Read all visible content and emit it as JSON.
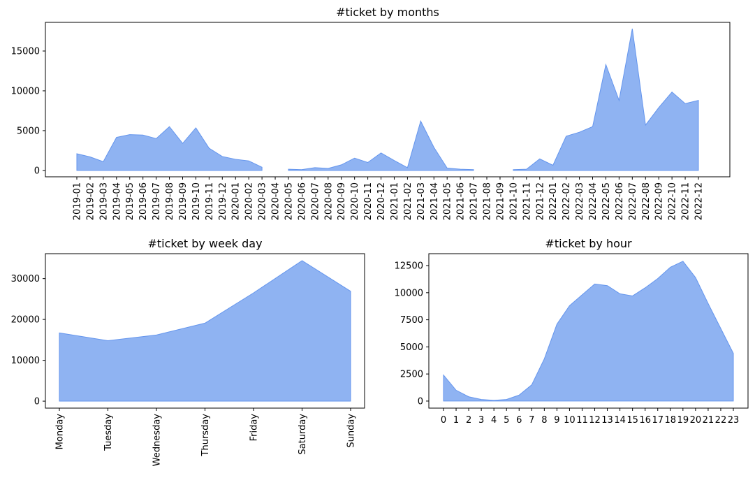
{
  "colors": {
    "area_fill": "#6495ED",
    "axis": "#000000",
    "background": "#ffffff"
  },
  "chart_data": [
    {
      "id": "months",
      "type": "area",
      "title": "#ticket by months",
      "xlabel": "",
      "ylabel": "",
      "ylim": [
        -800,
        18600
      ],
      "yticks": [
        0,
        5000,
        10000,
        15000
      ],
      "categories": [
        "2019-01",
        "2019-02",
        "2019-03",
        "2019-04",
        "2019-05",
        "2019-06",
        "2019-07",
        "2019-08",
        "2019-09",
        "2019-10",
        "2019-11",
        "2019-12",
        "2020-01",
        "2020-02",
        "2020-03",
        "2020-04",
        "2020-05",
        "2020-06",
        "2020-07",
        "2020-08",
        "2020-09",
        "2020-10",
        "2020-11",
        "2020-12",
        "2021-01",
        "2021-02",
        "2021-03",
        "2021-04",
        "2021-05",
        "2021-06",
        "2021-07",
        "2021-08",
        "2021-09",
        "2021-10",
        "2021-11",
        "2021-12",
        "2022-01",
        "2022-02",
        "2022-03",
        "2022-04",
        "2022-05",
        "2022-06",
        "2022-07",
        "2022-08",
        "2022-09",
        "2022-10",
        "2022-11",
        "2022-12"
      ],
      "values": [
        2100,
        1700,
        1100,
        4150,
        4500,
        4450,
        4000,
        5500,
        3400,
        5350,
        2800,
        1750,
        1400,
        1200,
        400,
        null,
        150,
        100,
        350,
        250,
        700,
        1550,
        1000,
        2200,
        1250,
        350,
        6200,
        2900,
        300,
        150,
        100,
        null,
        null,
        100,
        150,
        1450,
        650,
        4300,
        4800,
        5500,
        13300,
        8800,
        17800,
        5700,
        7900,
        9850,
        8400,
        8800
      ]
    },
    {
      "id": "weekday",
      "type": "area",
      "title": "#ticket by week day",
      "xlabel": "",
      "ylabel": "",
      "ylim": [
        -1700,
        36100
      ],
      "yticks": [
        0,
        10000,
        20000,
        30000
      ],
      "categories": [
        "Monday",
        "Tuesday",
        "Wednesday",
        "Thursday",
        "Friday",
        "Saturday",
        "Sunday"
      ],
      "values": [
        16700,
        14800,
        16200,
        19100,
        26500,
        34400,
        26900
      ]
    },
    {
      "id": "hour",
      "type": "area",
      "title": "#ticket by hour",
      "xlabel": "",
      "ylabel": "",
      "ylim": [
        -650,
        13600
      ],
      "yticks": [
        0,
        2500,
        5000,
        7500,
        10000,
        12500
      ],
      "categories": [
        "0",
        "1",
        "2",
        "3",
        "4",
        "5",
        "6",
        "7",
        "8",
        "9",
        "10",
        "11",
        "12",
        "13",
        "14",
        "15",
        "16",
        "17",
        "18",
        "19",
        "20",
        "21",
        "22",
        "23"
      ],
      "values": [
        2400,
        1000,
        400,
        150,
        70,
        150,
        550,
        1500,
        3900,
        7100,
        8800,
        9800,
        10800,
        10650,
        9900,
        9700,
        10450,
        11300,
        12350,
        12900,
        11400,
        9000,
        6700,
        4400
      ]
    }
  ]
}
